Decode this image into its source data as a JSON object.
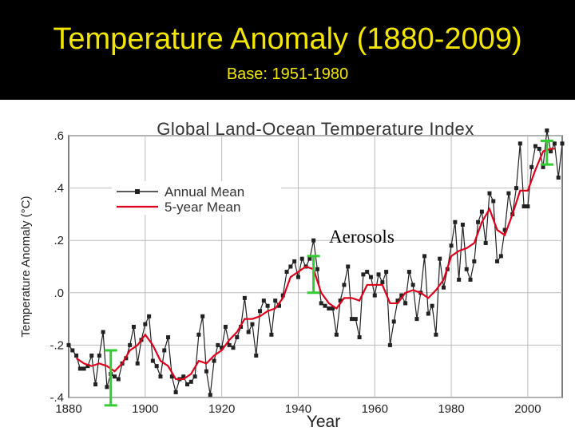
{
  "slide": {
    "title": "Temperature Anomaly (1880-2009)",
    "subtitle": "Base: 1951-1980"
  },
  "colors": {
    "header_bg": "#000000",
    "title_text": "#f2e600",
    "annual_series": "#222222",
    "mean_series": "#e0001b",
    "uncertainty_bar": "#33cc33"
  },
  "chart_data": {
    "type": "line",
    "title": "Global Land-Ocean Temperature Index",
    "xlabel": "Year",
    "ylabel": "Temperature Anomaly (°C)",
    "xlim": [
      1880,
      2009
    ],
    "ylim": [
      -0.4,
      0.6
    ],
    "x_ticks": [
      1880,
      1900,
      1920,
      1940,
      1960,
      1980,
      2000
    ],
    "x_tick_labels": [
      "1880",
      "1900",
      "1920",
      "1940",
      "1960",
      "1980",
      "2000"
    ],
    "y_ticks": [
      -0.4,
      -0.2,
      0.0,
      0.2,
      0.4,
      0.6
    ],
    "y_tick_labels": [
      "-.4",
      "-.2",
      ".0",
      ".2",
      ".4",
      ".6"
    ],
    "grid": true,
    "legend_position": "top-left",
    "annotation": "Aerosols",
    "uncertainty_bars": [
      {
        "x": 1891,
        "y_low": -0.43,
        "y_high": -0.22
      },
      {
        "x": 1944,
        "y_low": 0.0,
        "y_high": 0.14
      },
      {
        "x": 2005,
        "y_low": 0.49,
        "y_high": 0.58
      }
    ],
    "series": [
      {
        "name": "Annual Mean",
        "marker": "square",
        "x": [
          1880,
          1881,
          1882,
          1883,
          1884,
          1885,
          1886,
          1887,
          1888,
          1889,
          1890,
          1891,
          1892,
          1893,
          1894,
          1895,
          1896,
          1897,
          1898,
          1899,
          1900,
          1901,
          1902,
          1903,
          1904,
          1905,
          1906,
          1907,
          1908,
          1909,
          1910,
          1911,
          1912,
          1913,
          1914,
          1915,
          1916,
          1917,
          1918,
          1919,
          1920,
          1921,
          1922,
          1923,
          1924,
          1925,
          1926,
          1927,
          1928,
          1929,
          1930,
          1931,
          1932,
          1933,
          1934,
          1935,
          1936,
          1937,
          1938,
          1939,
          1940,
          1941,
          1942,
          1943,
          1944,
          1945,
          1946,
          1947,
          1948,
          1949,
          1950,
          1951,
          1952,
          1953,
          1954,
          1955,
          1956,
          1957,
          1958,
          1959,
          1960,
          1961,
          1962,
          1963,
          1964,
          1965,
          1966,
          1967,
          1968,
          1969,
          1970,
          1971,
          1972,
          1973,
          1974,
          1975,
          1976,
          1977,
          1978,
          1979,
          1980,
          1981,
          1982,
          1983,
          1984,
          1985,
          1986,
          1987,
          1988,
          1989,
          1990,
          1991,
          1992,
          1993,
          1994,
          1995,
          1996,
          1997,
          1998,
          1999,
          2000,
          2001,
          2002,
          2003,
          2004,
          2005,
          2006,
          2007,
          2008,
          2009
        ],
        "y": [
          -0.2,
          -0.22,
          -0.24,
          -0.29,
          -0.29,
          -0.28,
          -0.24,
          -0.35,
          -0.24,
          -0.15,
          -0.36,
          -0.31,
          -0.32,
          -0.33,
          -0.27,
          -0.25,
          -0.2,
          -0.13,
          -0.27,
          -0.18,
          -0.12,
          -0.09,
          -0.26,
          -0.28,
          -0.32,
          -0.22,
          -0.17,
          -0.32,
          -0.38,
          -0.33,
          -0.32,
          -0.35,
          -0.34,
          -0.32,
          -0.16,
          -0.09,
          -0.3,
          -0.39,
          -0.26,
          -0.2,
          -0.21,
          -0.13,
          -0.2,
          -0.21,
          -0.17,
          -0.13,
          -0.02,
          -0.15,
          -0.12,
          -0.24,
          -0.07,
          -0.03,
          -0.05,
          -0.16,
          -0.03,
          -0.05,
          -0.01,
          0.08,
          0.1,
          0.12,
          0.06,
          0.13,
          0.1,
          0.13,
          0.2,
          0.09,
          -0.04,
          -0.05,
          -0.06,
          -0.06,
          -0.16,
          -0.03,
          0.03,
          0.1,
          -0.1,
          -0.1,
          -0.17,
          0.07,
          0.08,
          0.06,
          -0.01,
          0.07,
          0.04,
          0.08,
          -0.2,
          -0.11,
          -0.03,
          -0.01,
          -0.04,
          0.08,
          0.03,
          -0.1,
          0.0,
          0.14,
          -0.08,
          -0.05,
          -0.16,
          0.13,
          0.02,
          0.09,
          0.18,
          0.27,
          0.05,
          0.26,
          0.09,
          0.05,
          0.12,
          0.27,
          0.31,
          0.19,
          0.38,
          0.35,
          0.12,
          0.14,
          0.24,
          0.38,
          0.3,
          0.4,
          0.57,
          0.33,
          0.33,
          0.48,
          0.56,
          0.55,
          0.48,
          0.62,
          0.54,
          0.57,
          0.44,
          0.57
        ]
      },
      {
        "name": "5-year Mean",
        "x": [
          1882,
          1884,
          1886,
          1888,
          1890,
          1892,
          1894,
          1896,
          1898,
          1900,
          1902,
          1904,
          1906,
          1908,
          1910,
          1912,
          1914,
          1916,
          1918,
          1920,
          1922,
          1924,
          1926,
          1928,
          1930,
          1932,
          1934,
          1936,
          1938,
          1940,
          1942,
          1944,
          1946,
          1948,
          1950,
          1952,
          1954,
          1956,
          1958,
          1960,
          1962,
          1964,
          1966,
          1968,
          1970,
          1972,
          1974,
          1976,
          1978,
          1980,
          1982,
          1984,
          1986,
          1988,
          1990,
          1992,
          1994,
          1996,
          1998,
          2000,
          2002,
          2004,
          2006,
          2007
        ],
        "y": [
          -0.25,
          -0.27,
          -0.28,
          -0.27,
          -0.28,
          -0.3,
          -0.27,
          -0.22,
          -0.2,
          -0.16,
          -0.2,
          -0.26,
          -0.28,
          -0.33,
          -0.33,
          -0.31,
          -0.26,
          -0.27,
          -0.24,
          -0.22,
          -0.18,
          -0.15,
          -0.1,
          -0.1,
          -0.09,
          -0.07,
          -0.06,
          -0.02,
          0.06,
          0.08,
          0.1,
          0.09,
          0.0,
          -0.04,
          -0.06,
          -0.02,
          -0.02,
          -0.03,
          0.03,
          0.03,
          0.03,
          -0.04,
          -0.04,
          0.0,
          0.01,
          0.0,
          -0.02,
          0.01,
          0.05,
          0.14,
          0.16,
          0.17,
          0.19,
          0.27,
          0.32,
          0.24,
          0.22,
          0.3,
          0.39,
          0.39,
          0.47,
          0.54,
          0.55,
          0.55
        ]
      }
    ]
  }
}
